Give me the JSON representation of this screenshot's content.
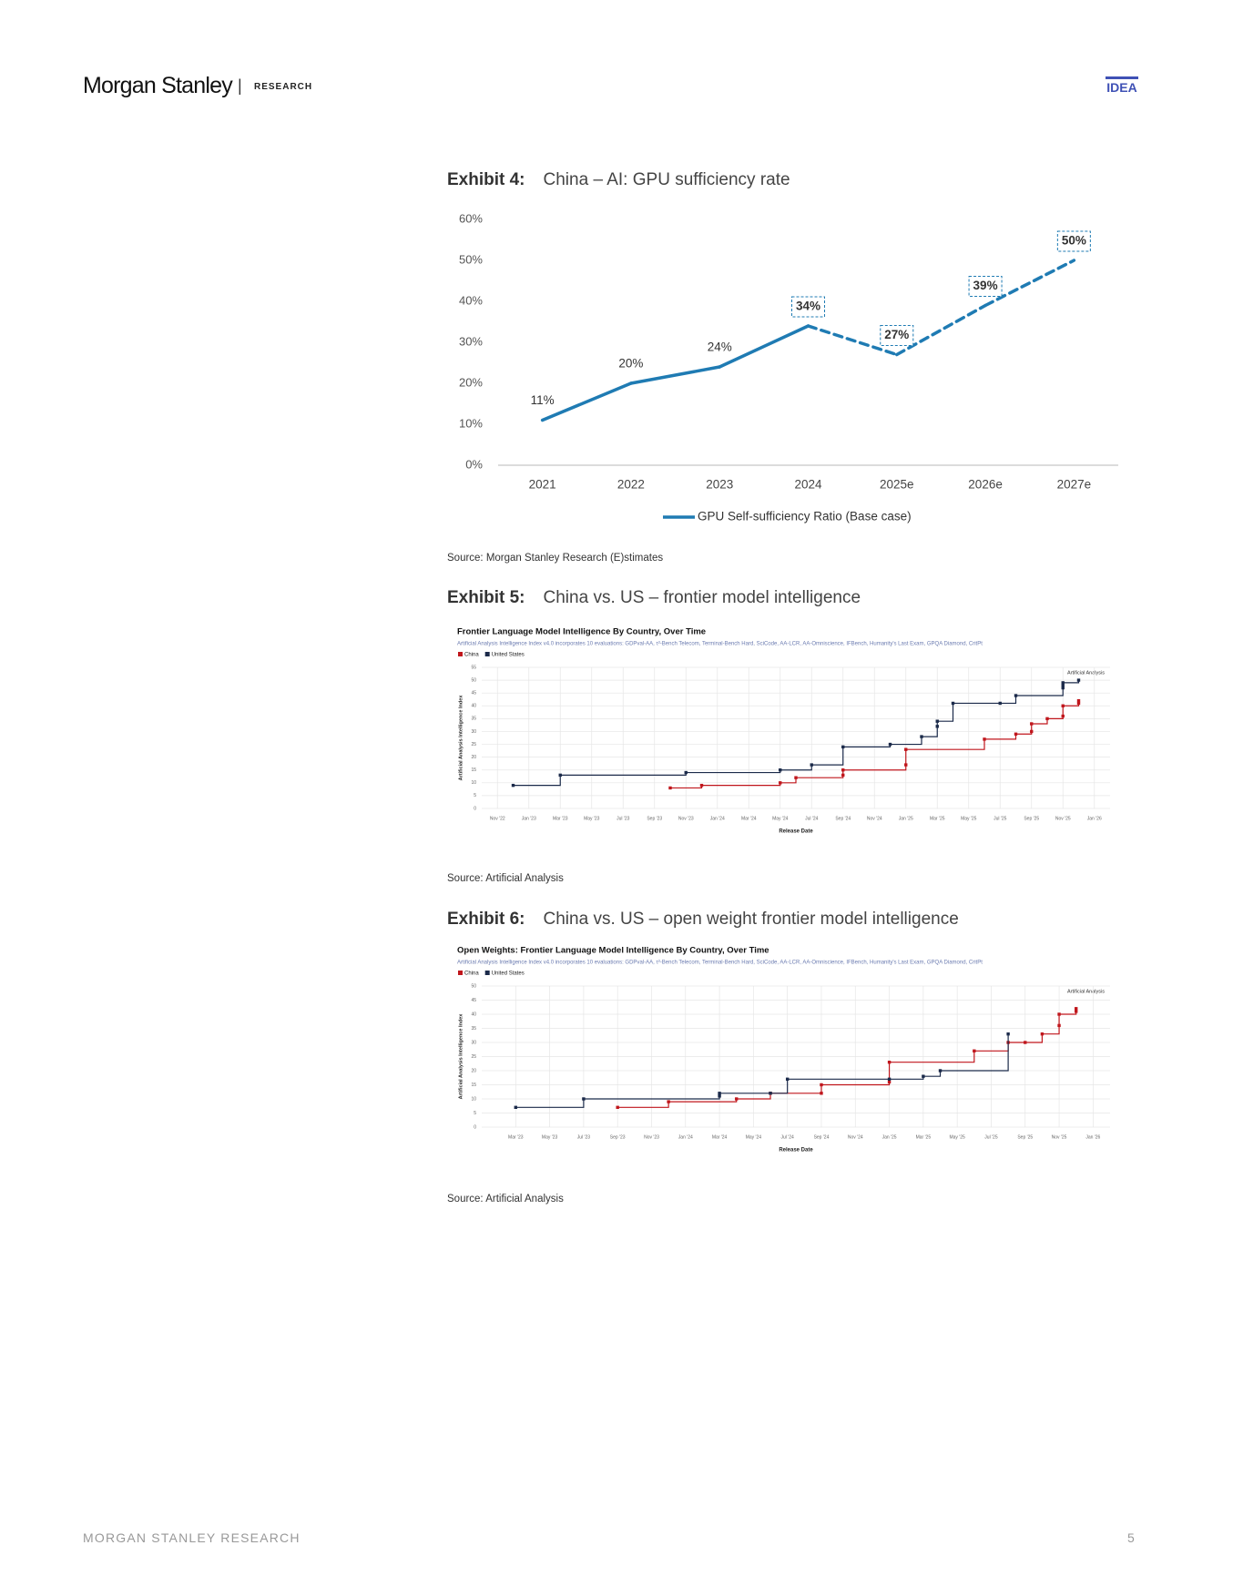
{
  "header": {
    "brand": "Morgan Stanley",
    "section": "RESEARCH",
    "tag": "IDEA"
  },
  "exhibits": [
    {
      "label": "Exhibit 4:",
      "title": "China – AI: GPU sufficiency rate",
      "source": "Source: Morgan Stanley Research (E)stimates"
    },
    {
      "label": "Exhibit 5:",
      "title": "China vs. US – frontier model intelligence",
      "source": "Source: Artificial Analysis"
    },
    {
      "label": "Exhibit 6:",
      "title": "China vs. US – open weight frontier model intelligence",
      "source": "Source: Artificial Analysis"
    }
  ],
  "chart_data": [
    {
      "type": "line",
      "categories": [
        "2021",
        "2022",
        "2023",
        "2024",
        "2025e",
        "2026e",
        "2027e"
      ],
      "series": [
        {
          "name": "GPU Self-sufficiency Ratio (Base case)",
          "color": "#1f7bb3",
          "values": [
            11,
            20,
            24,
            34,
            27,
            39,
            50
          ],
          "value_labels": [
            "11%",
            "20%",
            "24%",
            "34%",
            "27%",
            "39%",
            "50%"
          ]
        }
      ],
      "ylim": [
        0,
        60
      ],
      "yticks": [
        {
          "value": 0,
          "label": "0%"
        },
        {
          "value": 10,
          "label": "10%"
        },
        {
          "value": 20,
          "label": "20%"
        },
        {
          "value": 30,
          "label": "30%"
        },
        {
          "value": 40,
          "label": "40%"
        },
        {
          "value": 50,
          "label": "50%"
        },
        {
          "value": 60,
          "label": "60%"
        }
      ],
      "grid": false,
      "legend": "bottom"
    },
    {
      "type": "step",
      "title": "Frontier Language Model Intelligence By Country, Over Time",
      "subtitle": "Artificial Analysis Intelligence Index v4.0 incorporates 10 evaluations: GDPval-AA, τ²-Bench Telecom, Terminal-Bench Hard, SciCode, AA-LCR, AA-Omniscience, IFBench, Humanity's Last Exam, GPQA Diamond, CritPt",
      "watermark": "Artificial Analysis",
      "x_label": "Release Date",
      "y_label": "Artificial Analysis Intelligence Index",
      "series": [
        {
          "name": "China",
          "color": "#c0161c",
          "x": [
            "2023-10",
            "2023-12",
            "2024-05",
            "2024-06",
            "2024-09",
            "2024-09",
            "2025-01",
            "2025-01",
            "2025-06",
            "2025-08",
            "2025-09",
            "2025-09",
            "2025-10",
            "2025-11",
            "2025-11",
            "2025-12",
            "2025-12"
          ],
          "values": [
            8,
            9,
            10,
            12,
            13,
            15,
            17,
            23,
            27,
            29,
            30,
            33,
            35,
            36,
            40,
            41,
            42
          ]
        },
        {
          "name": "United States",
          "color": "#1b2a4a",
          "x": [
            "2022-12",
            "2023-03",
            "2023-11",
            "2024-05",
            "2024-07",
            "2024-09",
            "2024-12",
            "2025-02",
            "2025-03",
            "2025-03",
            "2025-04",
            "2025-07",
            "2025-08",
            "2025-11",
            "2025-11",
            "2025-11",
            "2025-12"
          ],
          "values": [
            9,
            13,
            14,
            15,
            17,
            24,
            25,
            28,
            32,
            34,
            41,
            41,
            44,
            47,
            48,
            49,
            50
          ]
        }
      ],
      "xlim": [
        "2022-10",
        "2026-02"
      ],
      "xticks": [
        {
          "value": "2022-11",
          "label": "Nov '22"
        },
        {
          "value": "2023-01",
          "label": "Jan '23"
        },
        {
          "value": "2023-03",
          "label": "Mar '23"
        },
        {
          "value": "2023-05",
          "label": "May '23"
        },
        {
          "value": "2023-07",
          "label": "Jul '23"
        },
        {
          "value": "2023-09",
          "label": "Sep '23"
        },
        {
          "value": "2023-11",
          "label": "Nov '23"
        },
        {
          "value": "2024-01",
          "label": "Jan '24"
        },
        {
          "value": "2024-03",
          "label": "Mar '24"
        },
        {
          "value": "2024-05",
          "label": "May '24"
        },
        {
          "value": "2024-07",
          "label": "Jul '24"
        },
        {
          "value": "2024-09",
          "label": "Sep '24"
        },
        {
          "value": "2024-11",
          "label": "Nov '24"
        },
        {
          "value": "2025-01",
          "label": "Jan '25"
        },
        {
          "value": "2025-03",
          "label": "Mar '25"
        },
        {
          "value": "2025-05",
          "label": "May '25"
        },
        {
          "value": "2025-07",
          "label": "Jul '25"
        },
        {
          "value": "2025-09",
          "label": "Sep '25"
        },
        {
          "value": "2025-11",
          "label": "Nov '25"
        },
        {
          "value": "2026-01",
          "label": "Jan '26"
        }
      ],
      "ylim": [
        0,
        55
      ],
      "yticks": [
        0,
        5,
        10,
        15,
        20,
        25,
        30,
        35,
        40,
        45,
        50,
        55
      ],
      "grid": true,
      "legend": "top-left"
    },
    {
      "type": "step",
      "title": "Open Weights: Frontier Language Model Intelligence By Country, Over Time",
      "subtitle": "Artificial Analysis Intelligence Index v4.0 incorporates 10 evaluations: GDPval-AA, τ²-Bench Telecom, Terminal-Bench Hard, SciCode, AA-LCR, AA-Omniscience, IFBench, Humanity's Last Exam, GPQA Diamond, CritPt",
      "watermark": "Artificial Analysis",
      "x_label": "Release Date",
      "y_label": "Artificial Analysis Intelligence Index",
      "series": [
        {
          "name": "China",
          "color": "#c0161c",
          "x": [
            "2023-09",
            "2023-12",
            "2024-04",
            "2024-06",
            "2024-09",
            "2024-09",
            "2025-01",
            "2025-01",
            "2025-06",
            "2025-08",
            "2025-09",
            "2025-10",
            "2025-11",
            "2025-11",
            "2025-12",
            "2025-12"
          ],
          "values": [
            7,
            9,
            10,
            12,
            12,
            15,
            16,
            23,
            27,
            30,
            30,
            33,
            36,
            40,
            41,
            42
          ]
        },
        {
          "name": "United States",
          "color": "#1b2a4a",
          "x": [
            "2023-03",
            "2023-07",
            "2024-03",
            "2024-03",
            "2024-06",
            "2024-07",
            "2025-01",
            "2025-03",
            "2025-04",
            "2025-08"
          ],
          "values": [
            7,
            10,
            11,
            12,
            12,
            17,
            17,
            18,
            20,
            33
          ]
        }
      ],
      "xlim": [
        "2023-01",
        "2026-02"
      ],
      "xticks": [
        {
          "value": "2023-03",
          "label": "Mar '23"
        },
        {
          "value": "2023-05",
          "label": "May '23"
        },
        {
          "value": "2023-07",
          "label": "Jul '23"
        },
        {
          "value": "2023-09",
          "label": "Sep '23"
        },
        {
          "value": "2023-11",
          "label": "Nov '23"
        },
        {
          "value": "2024-01",
          "label": "Jan '24"
        },
        {
          "value": "2024-03",
          "label": "Mar '24"
        },
        {
          "value": "2024-05",
          "label": "May '24"
        },
        {
          "value": "2024-07",
          "label": "Jul '24"
        },
        {
          "value": "2024-09",
          "label": "Sep '24"
        },
        {
          "value": "2024-11",
          "label": "Nov '24"
        },
        {
          "value": "2025-01",
          "label": "Jan '25"
        },
        {
          "value": "2025-03",
          "label": "Mar '25"
        },
        {
          "value": "2025-05",
          "label": "May '25"
        },
        {
          "value": "2025-07",
          "label": "Jul '25"
        },
        {
          "value": "2025-09",
          "label": "Sep '25"
        },
        {
          "value": "2025-11",
          "label": "Nov '25"
        },
        {
          "value": "2026-01",
          "label": "Jan '26"
        }
      ],
      "ylim": [
        0,
        50
      ],
      "yticks": [
        0,
        5,
        10,
        15,
        20,
        25,
        30,
        35,
        40,
        45,
        50
      ],
      "grid": true,
      "legend": "top-left"
    }
  ],
  "footer": {
    "left": "MORGAN STANLEY RESEARCH",
    "page": "5"
  }
}
